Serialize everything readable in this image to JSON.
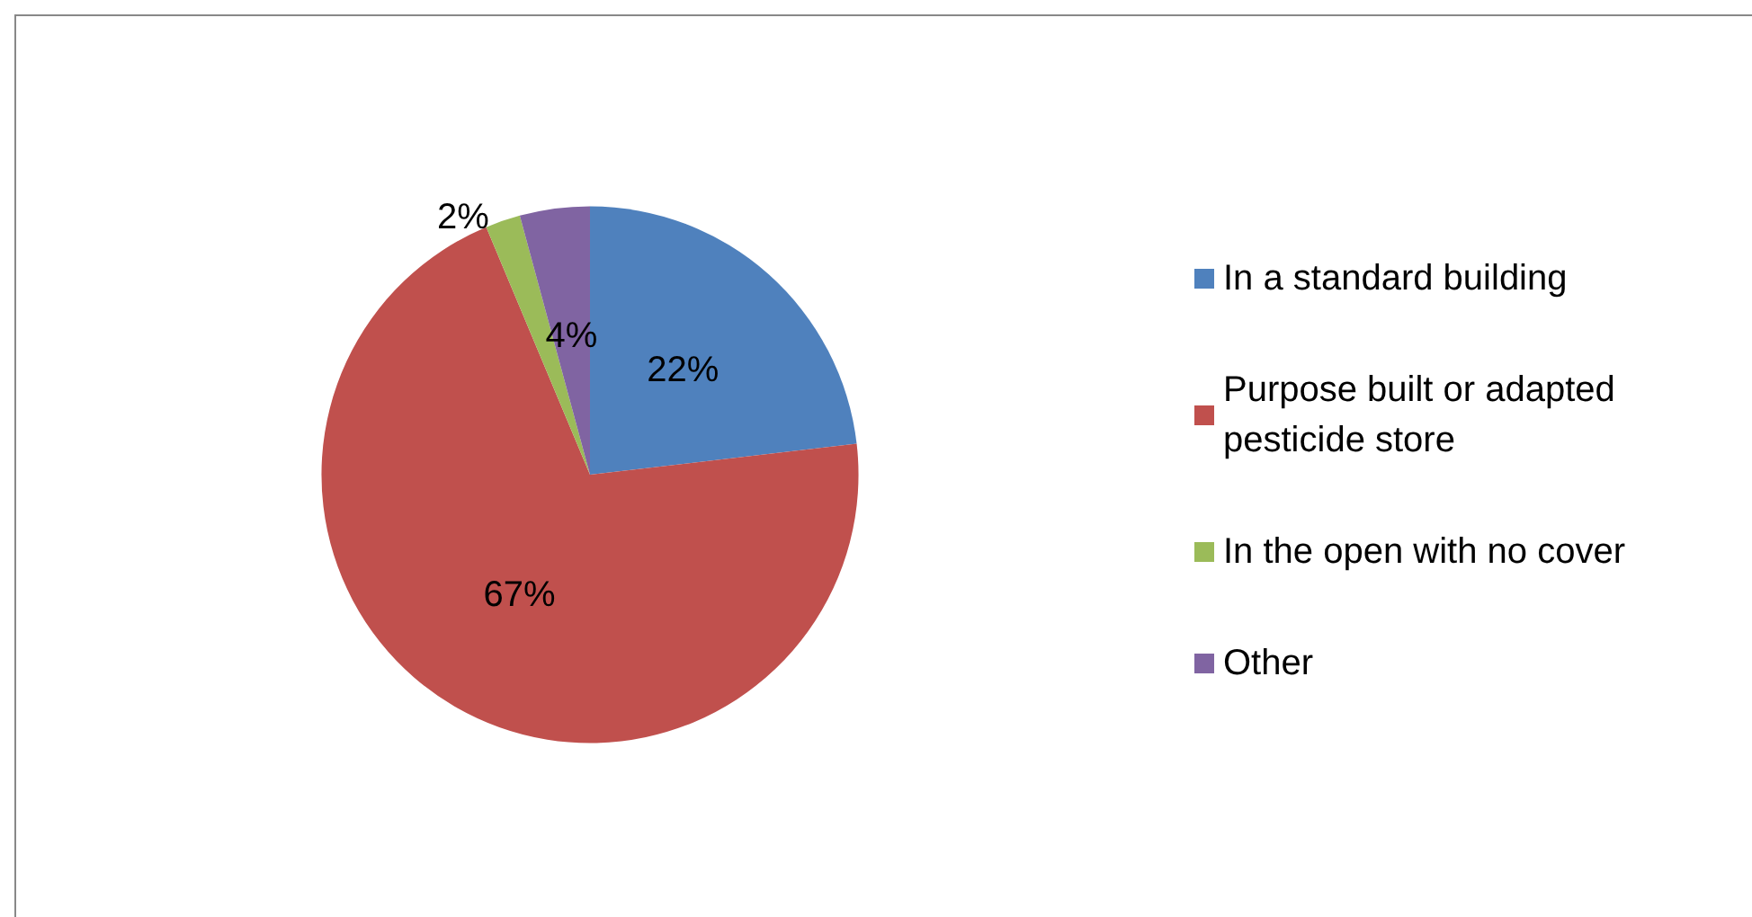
{
  "chart_data": {
    "type": "pie",
    "categories": [
      "In a standard building",
      "Purpose built or adapted pesticide store",
      "In the open with no cover",
      "Other"
    ],
    "values": [
      22,
      67,
      2,
      4
    ],
    "value_labels": [
      "22%",
      "67%",
      "2%",
      "4%"
    ],
    "colors": [
      "#4f81bd",
      "#c0504d",
      "#9bbb59",
      "#8064a2"
    ],
    "legend": "right"
  }
}
